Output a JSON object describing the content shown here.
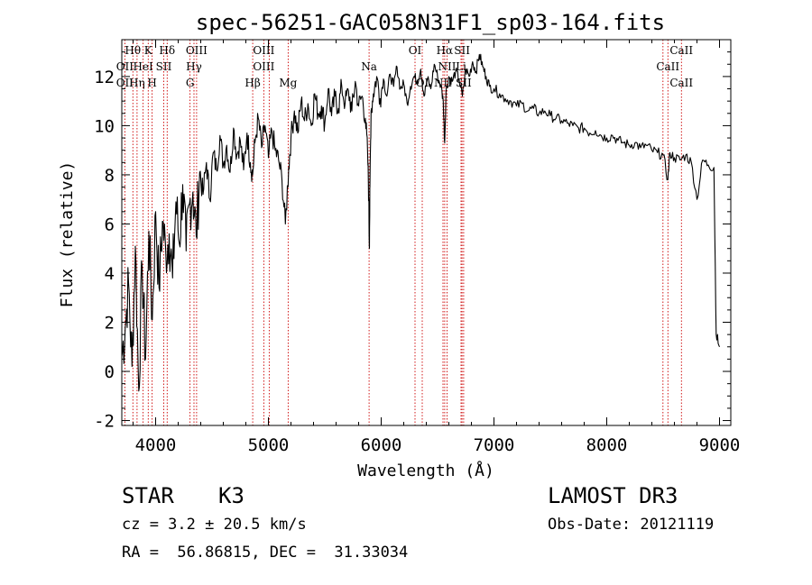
{
  "chart_data": {
    "type": "line",
    "title": "spec-56251-GAC058N31F1_sp03-164.fits",
    "xlabel": "Wavelength (Å)",
    "ylabel": "Flux (relative)",
    "xlim": [
      3700,
      9100
    ],
    "ylim": [
      -2.2,
      13.5
    ],
    "xticks": [
      4000,
      5000,
      6000,
      7000,
      8000,
      9000
    ],
    "xtick_labels": [
      "4000",
      "5000",
      "6000",
      "7000",
      "8000",
      "9000"
    ],
    "yticks": [
      -2,
      0,
      2,
      4,
      6,
      8,
      10,
      12
    ],
    "ytick_labels": [
      "-2",
      "0",
      "2",
      "4",
      "6",
      "8",
      "10",
      "12"
    ],
    "grid": false,
    "series": [
      {
        "name": "spectrum",
        "x": [
          3700,
          3730,
          3760,
          3790,
          3820,
          3850,
          3880,
          3910,
          3940,
          3970,
          4000,
          4030,
          4060,
          4090,
          4120,
          4150,
          4180,
          4210,
          4240,
          4270,
          4300,
          4330,
          4360,
          4390,
          4420,
          4450,
          4480,
          4510,
          4540,
          4570,
          4600,
          4630,
          4660,
          4690,
          4720,
          4750,
          4780,
          4810,
          4840,
          4860,
          4880,
          4910,
          4940,
          4970,
          5000,
          5030,
          5060,
          5090,
          5120,
          5150,
          5180,
          5200,
          5230,
          5260,
          5290,
          5320,
          5350,
          5380,
          5410,
          5440,
          5470,
          5500,
          5530,
          5560,
          5590,
          5620,
          5650,
          5680,
          5710,
          5740,
          5770,
          5800,
          5830,
          5860,
          5880,
          5890,
          5895,
          5900,
          5910,
          5930,
          5960,
          5990,
          6020,
          6050,
          6080,
          6110,
          6140,
          6170,
          6200,
          6230,
          6260,
          6290,
          6320,
          6350,
          6380,
          6410,
          6440,
          6470,
          6500,
          6530,
          6550,
          6563,
          6575,
          6600,
          6630,
          6660,
          6690,
          6720,
          6750,
          6780,
          6810,
          6840,
          6870,
          6900,
          6930,
          6960,
          7000,
          7050,
          7100,
          7150,
          7200,
          7250,
          7300,
          7350,
          7400,
          7450,
          7500,
          7550,
          7600,
          7650,
          7700,
          7750,
          7800,
          7850,
          7900,
          7950,
          8000,
          8050,
          8100,
          8150,
          8200,
          8250,
          8300,
          8350,
          8400,
          8450,
          8500,
          8542,
          8560,
          8600,
          8650,
          8700,
          8750,
          8800,
          8850,
          8900,
          8950,
          8970,
          9000
        ],
        "y": [
          0.6,
          1.8,
          3.6,
          0.2,
          5.1,
          -0.8,
          4.3,
          0.5,
          5.7,
          2.1,
          6.5,
          3.4,
          6.1,
          4.8,
          5.6,
          3.8,
          6.9,
          5.2,
          7.6,
          4.9,
          6.8,
          7.3,
          5.5,
          8.1,
          7.2,
          8.5,
          7.0,
          8.9,
          8.2,
          9.6,
          8.4,
          9.2,
          8.1,
          9.9,
          8.8,
          9.4,
          8.2,
          9.7,
          8.5,
          8.0,
          9.3,
          10.3,
          9.1,
          10.0,
          8.7,
          9.8,
          9.0,
          8.6,
          7.8,
          6.0,
          8.3,
          9.5,
          10.6,
          9.7,
          11.0,
          10.2,
          10.9,
          10.0,
          11.3,
          10.5,
          10.8,
          10.1,
          11.5,
          10.4,
          11.2,
          10.7,
          11.6,
          10.9,
          11.4,
          10.6,
          11.8,
          10.8,
          11.2,
          10.3,
          8.8,
          7.0,
          5.0,
          7.5,
          10.6,
          11.3,
          12.0,
          11.1,
          11.9,
          11.2,
          12.1,
          11.6,
          12.4,
          11.5,
          11.7,
          10.9,
          11.6,
          12.0,
          11.8,
          12.3,
          11.2,
          11.9,
          11.5,
          12.5,
          12.0,
          11.6,
          11.0,
          9.3,
          11.4,
          12.0,
          11.8,
          12.2,
          11.9,
          11.2,
          12.3,
          12.0,
          12.6,
          12.2,
          12.9,
          12.4,
          12.0,
          11.6,
          11.5,
          11.3,
          11.1,
          11.0,
          10.8,
          10.9,
          10.6,
          10.7,
          10.5,
          10.6,
          10.4,
          10.3,
          10.2,
          10.1,
          10.0,
          9.9,
          9.9,
          9.7,
          9.8,
          9.6,
          9.5,
          9.6,
          9.4,
          9.3,
          9.2,
          9.3,
          9.1,
          9.2,
          9.0,
          8.9,
          8.8,
          7.8,
          8.9,
          8.7,
          8.6,
          8.8,
          8.5,
          7.0,
          8.6,
          8.4,
          8.3,
          1.5,
          1.0
        ]
      }
    ],
    "line_labels": [
      {
        "label": "Hθ",
        "x": 3798,
        "row": 1
      },
      {
        "label": "K",
        "x": 3934,
        "row": 1
      },
      {
        "label": "Hδ",
        "x": 4102,
        "row": 1
      },
      {
        "label": "OIII",
        "x": 4363,
        "row": 1
      },
      {
        "label": "OIII",
        "x": 4959,
        "row": 1
      },
      {
        "label": "OI",
        "x": 6300,
        "row": 1
      },
      {
        "label": "Hα",
        "x": 6563,
        "row": 1
      },
      {
        "label": "SII",
        "x": 6717,
        "row": 1
      },
      {
        "label": "CaII",
        "x": 8662,
        "row": 1
      },
      {
        "label": "OII",
        "x": 3727,
        "row": 2
      },
      {
        "label": "HeI",
        "x": 3889,
        "row": 2
      },
      {
        "label": "SII",
        "x": 4072,
        "row": 2
      },
      {
        "label": "Hγ",
        "x": 4340,
        "row": 2
      },
      {
        "label": "OIII",
        "x": 4959,
        "row": 2
      },
      {
        "label": "Na",
        "x": 5893,
        "row": 2
      },
      {
        "label": "NII",
        "x": 6584,
        "row": 2
      },
      {
        "label": "Li",
        "x": 6708,
        "row": 2
      },
      {
        "label": "CaII",
        "x": 8542,
        "row": 2
      },
      {
        "label": "OII",
        "x": 3727,
        "row": 3
      },
      {
        "label": "Hη",
        "x": 3835,
        "row": 3
      },
      {
        "label": "H",
        "x": 3969,
        "row": 3
      },
      {
        "label": "G",
        "x": 4305,
        "row": 3
      },
      {
        "label": "Hβ",
        "x": 4861,
        "row": 3
      },
      {
        "label": "Mg",
        "x": 5175,
        "row": 3
      },
      {
        "label": "OI",
        "x": 6364,
        "row": 3
      },
      {
        "label": "NII",
        "x": 6548,
        "row": 3
      },
      {
        "label": "SII",
        "x": 6731,
        "row": 3
      },
      {
        "label": "CaII",
        "x": 8662,
        "row": 3
      }
    ],
    "line_markers": [
      3727,
      3798,
      3835,
      3889,
      3934,
      3969,
      4072,
      4102,
      4305,
      4340,
      4363,
      4861,
      4959,
      5007,
      5175,
      5893,
      6300,
      6364,
      6548,
      6563,
      6584,
      6708,
      6717,
      6731,
      8498,
      8542,
      8662
    ],
    "colors": {
      "spectrum": "#000000",
      "line_markers": "#cc0000",
      "axes": "#000000"
    }
  },
  "info": {
    "object_class": "STAR",
    "subclass": "K3",
    "survey": "LAMOST DR3",
    "redshift": "cz = 3.2 ± 20.5 km/s",
    "obs_date": "Obs-Date: 20121119",
    "coordinates": "RA =  56.86815, DEC =  31.33034"
  }
}
